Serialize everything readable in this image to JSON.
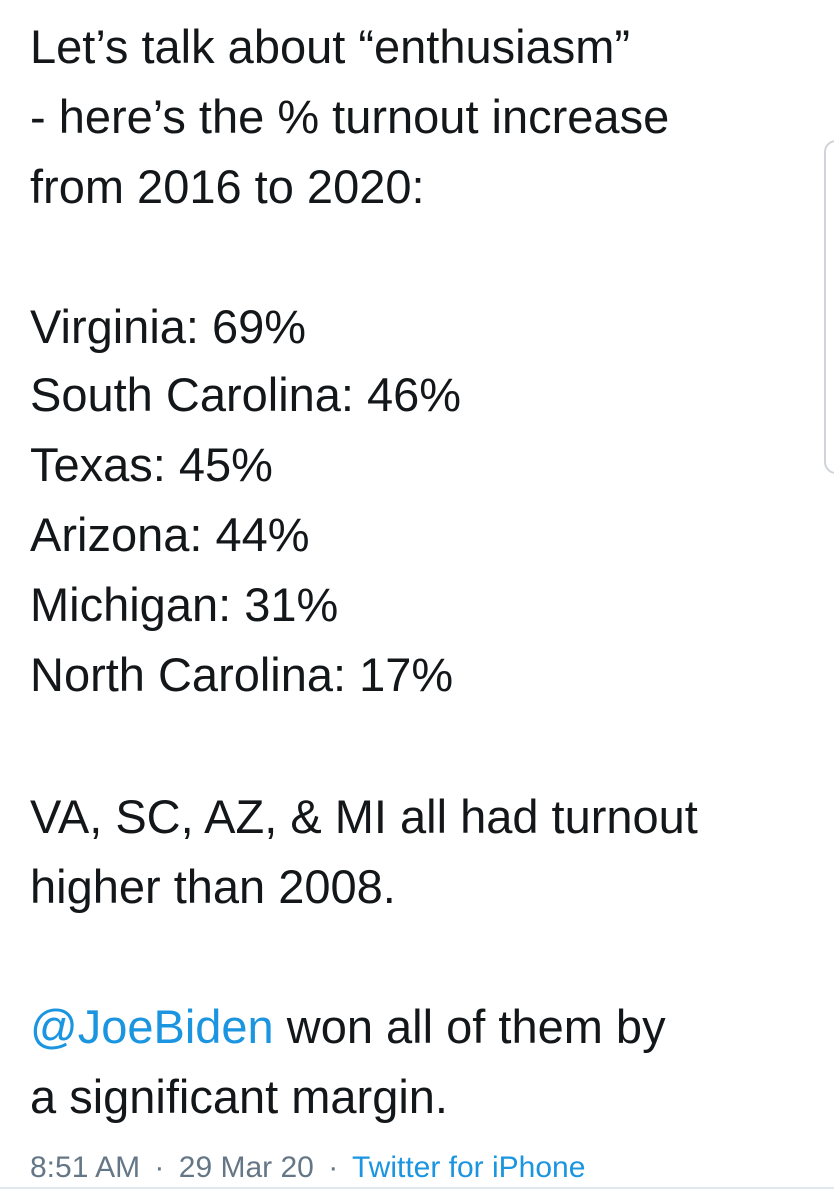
{
  "tweet": {
    "intro": [
      "Let’s talk about “enthusiasm”",
      "- here’s the % turnout increase",
      "from 2016 to 2020:"
    ],
    "turnout": [
      "Virginia: 69%",
      "South Carolina: 46%",
      "Texas: 45%",
      "Arizona: 44%",
      "Michigan: 31%",
      "North Carolina: 17%"
    ],
    "note": [
      "VA, SC, AZ, & MI all had turnout",
      "higher than 2008."
    ],
    "closing": {
      "mention": "@JoeBiden",
      "line1": "won all of them by",
      "line2": "a significant margin."
    },
    "meta": {
      "time": "8:51 AM",
      "separator": "·",
      "date": "29 Mar 20",
      "source": "Twitter for iPhone"
    }
  }
}
